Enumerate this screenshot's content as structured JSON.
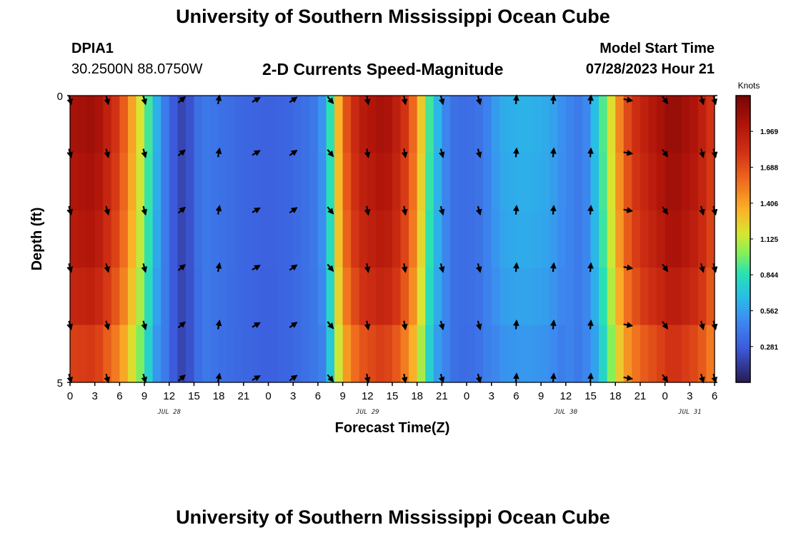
{
  "page": {
    "title": "University of Southern Mississippi Ocean Cube",
    "station_id": "DPIA1",
    "coords": "30.2500N  88.0750W",
    "plot_title": "2-D Currents Speed-Magnitude",
    "model_start_label": "Model Start Time",
    "model_start_value": "07/28/2023 Hour 21",
    "footer_title": "University of Southern Mississippi Ocean Cube"
  },
  "chart_data": {
    "type": "heatmap",
    "title": "2-D Currents Speed-Magnitude",
    "xlabel": "Forecast Time(Z)",
    "ylabel": "Depth (ft)",
    "colorbar_label": "Knots",
    "colorbar_ticks": [
      "0.281",
      "0.562",
      "0.844",
      "1.125",
      "1.406",
      "1.688",
      "1.969"
    ],
    "color_range": [
      0.0,
      2.25
    ],
    "x_range": [
      0,
      78
    ],
    "y_range": [
      0,
      5
    ],
    "x_ticks": [
      "0",
      "3",
      "6",
      "9",
      "12",
      "15",
      "18",
      "21",
      "0",
      "3",
      "6",
      "9",
      "12",
      "15",
      "18",
      "21",
      "0",
      "3",
      "6",
      "9",
      "12",
      "15",
      "18",
      "21",
      "0",
      "3",
      "6"
    ],
    "y_ticks": [
      "0",
      "5"
    ],
    "date_labels": [
      {
        "label": "JUL 28",
        "hour": 12
      },
      {
        "label": "JUL 29",
        "hour": 36
      },
      {
        "label": "JUL 30",
        "hour": 60
      },
      {
        "label": "JUL 31",
        "hour": 75
      }
    ],
    "time_step_hours": 1,
    "depth_levels": 5,
    "speed_keypoints": [
      [
        0,
        2.05
      ],
      [
        3,
        2.1
      ],
      [
        6,
        1.75
      ],
      [
        8,
        1.3
      ],
      [
        9,
        1.05
      ],
      [
        10,
        0.75
      ],
      [
        11,
        0.5
      ],
      [
        12,
        0.35
      ],
      [
        13,
        0.2
      ],
      [
        14,
        0.18
      ],
      [
        15,
        0.3
      ],
      [
        16,
        0.42
      ],
      [
        18,
        0.38
      ],
      [
        21,
        0.33
      ],
      [
        24,
        0.3
      ],
      [
        27,
        0.33
      ],
      [
        30,
        0.42
      ],
      [
        31,
        0.62
      ],
      [
        32,
        1.1
      ],
      [
        33,
        1.6
      ],
      [
        35,
        1.95
      ],
      [
        38,
        2.08
      ],
      [
        40,
        1.9
      ],
      [
        42,
        1.5
      ],
      [
        43,
        1.05
      ],
      [
        44,
        0.75
      ],
      [
        45,
        0.55
      ],
      [
        46,
        0.38
      ],
      [
        48,
        0.35
      ],
      [
        50,
        0.4
      ],
      [
        52,
        0.6
      ],
      [
        55,
        0.64
      ],
      [
        58,
        0.6
      ],
      [
        60,
        0.48
      ],
      [
        62,
        0.4
      ],
      [
        63,
        0.55
      ],
      [
        64,
        0.8
      ],
      [
        65,
        1.05
      ],
      [
        66,
        1.35
      ],
      [
        67,
        1.65
      ],
      [
        69,
        1.9
      ],
      [
        73,
        2.15
      ],
      [
        76,
        2.0
      ],
      [
        78,
        1.75
      ]
    ],
    "depth_factors": [
      1.0,
      0.98,
      0.96,
      0.92,
      0.85,
      0.72
    ],
    "vector_hours": [
      0,
      4.5,
      9,
      13.5,
      18,
      22.5,
      27,
      31.5,
      36,
      40.5,
      45,
      49.5,
      54,
      58.5,
      63,
      67.5,
      72,
      76.5,
      78
    ],
    "vector_depths": [
      0,
      1,
      2,
      3,
      4,
      5
    ],
    "vector_directions_deg": [
      165,
      165,
      165,
      50,
      10,
      60,
      55,
      140,
      170,
      170,
      165,
      165,
      5,
      5,
      5,
      100,
      145,
      165,
      165
    ]
  }
}
